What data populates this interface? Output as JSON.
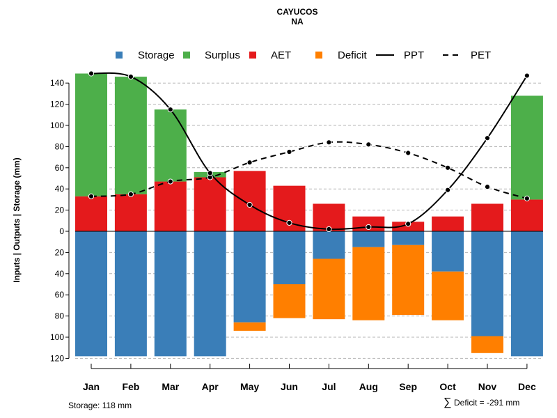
{
  "chart_data": {
    "type": "bar",
    "title": "CAYUCOS",
    "subtitle": "NA",
    "ylabel": "Inputs | Outputs | Storage    (mm)",
    "categories": [
      "Jan",
      "Feb",
      "Mar",
      "Apr",
      "May",
      "Jun",
      "Jul",
      "Aug",
      "Sep",
      "Oct",
      "Nov",
      "Dec"
    ],
    "ylim": [
      -120,
      150
    ],
    "y_ticks_up": [
      "0",
      "20",
      "40",
      "60",
      "80",
      "100",
      "120",
      "140"
    ],
    "y_ticks_down": [
      "20",
      "40",
      "60",
      "80",
      "100",
      "120"
    ],
    "legend": {
      "position": "top",
      "entries": [
        {
          "key": "storage",
          "label": "Storage",
          "color": "#3a7eb8",
          "kind": "box"
        },
        {
          "key": "surplus",
          "label": "Surplus",
          "color": "#4daf4a",
          "kind": "box"
        },
        {
          "key": "aet",
          "label": "AET",
          "color": "#e41a1c",
          "kind": "box"
        },
        {
          "key": "deficit",
          "label": "Deficit",
          "color": "#ff7f00",
          "kind": "box"
        },
        {
          "key": "ppt",
          "label": "PPT",
          "color": "#000000",
          "kind": "solid"
        },
        {
          "key": "pet",
          "label": "PET",
          "color": "#000000",
          "kind": "dashed"
        }
      ]
    },
    "series": [
      {
        "name": "AET",
        "values": [
          33,
          35,
          47,
          51,
          57,
          43,
          26,
          14,
          9,
          14,
          26,
          30
        ]
      },
      {
        "name": "Surplus",
        "values": [
          116,
          111,
          68,
          5,
          0,
          0,
          0,
          0,
          0,
          0,
          0,
          98
        ]
      },
      {
        "name": "Storage",
        "values": [
          118,
          118,
          118,
          118,
          86,
          50,
          26,
          15,
          13,
          38,
          99,
          118
        ]
      },
      {
        "name": "Deficit",
        "values": [
          0,
          0,
          0,
          0,
          8,
          32,
          57,
          69,
          66,
          46,
          16,
          0
        ]
      },
      {
        "name": "PPT",
        "values": [
          149,
          146,
          115,
          55,
          25,
          8,
          2,
          4,
          7,
          39,
          88,
          147
        ]
      },
      {
        "name": "PET",
        "values": [
          33,
          35,
          47,
          51,
          65,
          75,
          84,
          82,
          74,
          60,
          42,
          31
        ]
      }
    ],
    "grid": true,
    "footer_left": "Storage: 118 mm",
    "footer_right_symbol": "∑",
    "footer_right": "Deficit = -291 mm"
  }
}
